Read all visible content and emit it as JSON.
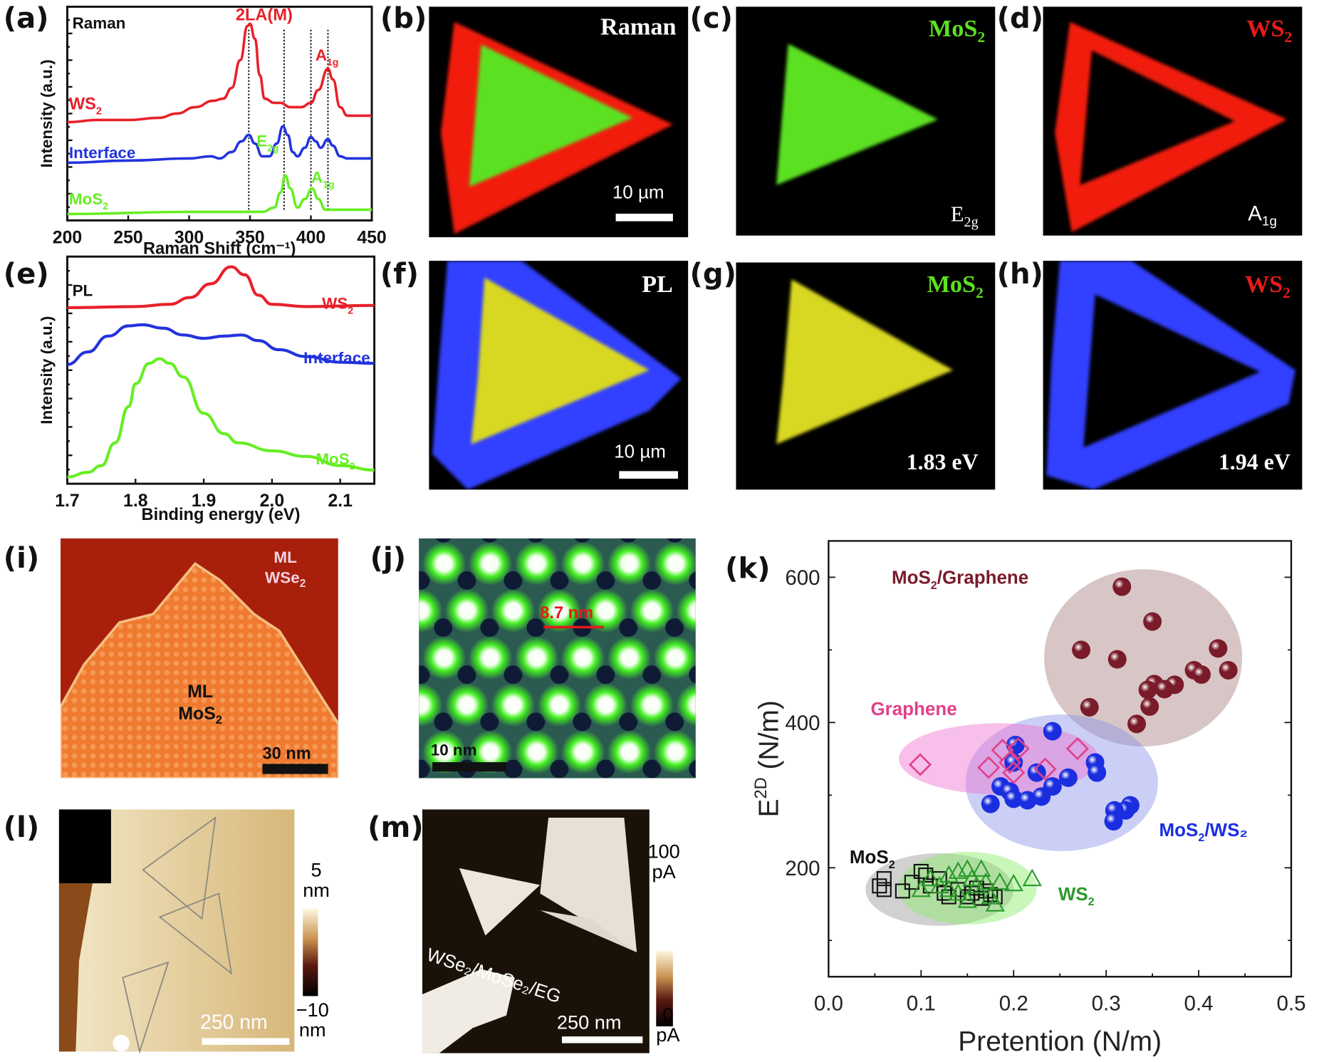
{
  "panel_labels": {
    "a": "(a)",
    "b": "(b)",
    "c": "(c)",
    "d": "(d)",
    "e": "(e)",
    "f": "(f)",
    "g": "(g)",
    "h": "(h)",
    "i": "(i)",
    "j": "(j)",
    "k": "(k)",
    "l": "(l)",
    "m": "(m)"
  },
  "colors": {
    "ws2": "#e8202a",
    "interface": "#2233dd",
    "mos2": "#66ee22",
    "pl_yellow": "#e6e61a",
    "pl_blue": "#3344ff",
    "mos2_graphene": "#7a1b2a",
    "graphene": "#e0408a",
    "mos2_ws2": "#1a2ee0",
    "ws2_green": "#2a9a2a"
  },
  "images": {
    "b": {
      "title": "Raman",
      "scale": "10 µm"
    },
    "c": {
      "title_main": "MoS",
      "title_sub": "2",
      "mode_main": "E",
      "mode_sub": "2g"
    },
    "d": {
      "title_main": "WS",
      "title_sub": "2",
      "mode_main": "A",
      "mode_sub": "1g"
    },
    "f": {
      "title": "PL",
      "scale": "10 µm"
    },
    "g": {
      "title_main": "MoS",
      "title_sub": "2",
      "energy": "1.83 eV"
    },
    "h": {
      "title_main": "WS",
      "title_sub": "2",
      "energy": "1.94 eV"
    },
    "i": {
      "top_main": "ML",
      "top_line2_main": "WSe",
      "top_line2_sub": "2",
      "mid_main": "ML",
      "mid_line2_main": "MoS",
      "mid_line2_sub": "2",
      "scale": "30 nm"
    },
    "j": {
      "distance": "8.7 nm",
      "scale": "10 nm"
    },
    "l": {
      "cbar_top": "5",
      "cbar_top_unit": "nm",
      "cbar_bottom": "−10",
      "cbar_bottom_unit": "nm",
      "scale": "250 nm"
    },
    "m": {
      "cbar_top": "100",
      "cbar_top_unit": "pA",
      "cbar_bottom": "0",
      "cbar_bottom_unit": "pA",
      "annotation": "WSe₂/MoSe₂/EG",
      "scale": "250 nm"
    }
  },
  "chart_data": [
    {
      "id": "a",
      "type": "line",
      "xlabel": "Raman Shift (cm⁻¹)",
      "ylabel": "Intensity (a.u.)",
      "xlim": [
        200,
        450
      ],
      "ylim": [
        0,
        1
      ],
      "xticks": [
        200,
        250,
        300,
        350,
        400,
        450
      ],
      "grid": false,
      "annotations": [
        {
          "main": "Raman",
          "sub": "",
          "color": "#111111"
        },
        {
          "main": "2LA(M)",
          "sub": "",
          "color": "#e8202a"
        },
        {
          "main": "A",
          "sub": "1g",
          "color": "#e8202a"
        },
        {
          "main": "WS",
          "sub": "2",
          "color": "#e8202a"
        },
        {
          "main": "Interface",
          "sub": "",
          "color": "#2233dd"
        },
        {
          "main": "E",
          "sub": "2g",
          "color": "#66ee22"
        },
        {
          "main": "A",
          "sub": "1g",
          "color": "#66ee22"
        },
        {
          "main": "MoS",
          "sub": "2",
          "color": "#66ee22"
        }
      ],
      "peak_markers": [
        349,
        378,
        400,
        414
      ],
      "series": [
        {
          "name": "WS2",
          "color": "#e8202a",
          "points": [
            [
              200,
              0.46
            ],
            [
              225,
              0.47
            ],
            [
              250,
              0.47
            ],
            [
              275,
              0.48
            ],
            [
              290,
              0.5
            ],
            [
              305,
              0.53
            ],
            [
              320,
              0.56
            ],
            [
              328,
              0.57
            ],
            [
              335,
              0.62
            ],
            [
              342,
              0.75
            ],
            [
              348,
              0.91
            ],
            [
              350,
              0.92
            ],
            [
              354,
              0.85
            ],
            [
              358,
              0.68
            ],
            [
              362,
              0.57
            ],
            [
              370,
              0.55
            ],
            [
              375,
              0.55
            ],
            [
              383,
              0.53
            ],
            [
              392,
              0.53
            ],
            [
              400,
              0.55
            ],
            [
              406,
              0.61
            ],
            [
              414,
              0.71
            ],
            [
              418,
              0.66
            ],
            [
              424,
              0.53
            ],
            [
              430,
              0.49
            ],
            [
              450,
              0.49
            ]
          ]
        },
        {
          "name": "Interface",
          "color": "#2233dd",
          "points": [
            [
              200,
              0.27
            ],
            [
              250,
              0.28
            ],
            [
              300,
              0.29
            ],
            [
              318,
              0.3
            ],
            [
              325,
              0.29
            ],
            [
              335,
              0.32
            ],
            [
              343,
              0.37
            ],
            [
              349,
              0.4
            ],
            [
              354,
              0.36
            ],
            [
              360,
              0.3
            ],
            [
              366,
              0.3
            ],
            [
              372,
              0.36
            ],
            [
              377,
              0.44
            ],
            [
              381,
              0.4
            ],
            [
              385,
              0.32
            ],
            [
              389,
              0.3
            ],
            [
              395,
              0.34
            ],
            [
              400,
              0.39
            ],
            [
              404,
              0.37
            ],
            [
              408,
              0.34
            ],
            [
              414,
              0.38
            ],
            [
              418,
              0.35
            ],
            [
              424,
              0.3
            ],
            [
              430,
              0.29
            ],
            [
              450,
              0.29
            ]
          ]
        },
        {
          "name": "MoS2",
          "color": "#66ee22",
          "points": [
            [
              200,
              0.03
            ],
            [
              300,
              0.04
            ],
            [
              360,
              0.04
            ],
            [
              370,
              0.06
            ],
            [
              375,
              0.13
            ],
            [
              379,
              0.21
            ],
            [
              383,
              0.15
            ],
            [
              389,
              0.06
            ],
            [
              395,
              0.1
            ],
            [
              401,
              0.15
            ],
            [
              406,
              0.1
            ],
            [
              412,
              0.05
            ],
            [
              420,
              0.05
            ],
            [
              450,
              0.05
            ]
          ]
        }
      ]
    },
    {
      "id": "e",
      "type": "line",
      "xlabel": "Binding energy (eV)",
      "ylabel": "Intensity (a.u.)",
      "xlim": [
        1.7,
        2.15
      ],
      "ylim": [
        0,
        1
      ],
      "xticks": [
        1.7,
        1.8,
        1.9,
        2.0,
        2.1
      ],
      "grid": false,
      "annotations": [
        {
          "main": "PL",
          "sub": "",
          "color": "#111111"
        },
        {
          "main": "WS",
          "sub": "2",
          "color": "#e8202a"
        },
        {
          "main": "Interface",
          "sub": "",
          "color": "#2233dd"
        },
        {
          "main": "MoS",
          "sub": "2",
          "color": "#66ee22"
        }
      ],
      "series": [
        {
          "name": "WS2",
          "color": "#e8202a",
          "points": [
            [
              1.7,
              0.775
            ],
            [
              1.8,
              0.78
            ],
            [
              1.85,
              0.79
            ],
            [
              1.88,
              0.82
            ],
            [
              1.91,
              0.88
            ],
            [
              1.94,
              0.955
            ],
            [
              1.96,
              0.92
            ],
            [
              1.98,
              0.83
            ],
            [
              2.0,
              0.79
            ],
            [
              2.05,
              0.78
            ],
            [
              2.15,
              0.785
            ]
          ]
        },
        {
          "name": "Interface",
          "color": "#2233dd",
          "points": [
            [
              1.7,
              0.525
            ],
            [
              1.73,
              0.58
            ],
            [
              1.76,
              0.65
            ],
            [
              1.79,
              0.695
            ],
            [
              1.81,
              0.7
            ],
            [
              1.84,
              0.685
            ],
            [
              1.87,
              0.655
            ],
            [
              1.9,
              0.64
            ],
            [
              1.93,
              0.65
            ],
            [
              1.955,
              0.655
            ],
            [
              1.98,
              0.63
            ],
            [
              2.01,
              0.59
            ],
            [
              2.05,
              0.56
            ],
            [
              2.1,
              0.535
            ],
            [
              2.15,
              0.53
            ]
          ]
        },
        {
          "name": "MoS2",
          "color": "#66ee22",
          "points": [
            [
              1.7,
              0.03
            ],
            [
              1.73,
              0.05
            ],
            [
              1.75,
              0.08
            ],
            [
              1.77,
              0.18
            ],
            [
              1.79,
              0.34
            ],
            [
              1.8,
              0.44
            ],
            [
              1.82,
              0.53
            ],
            [
              1.835,
              0.55
            ],
            [
              1.85,
              0.53
            ],
            [
              1.87,
              0.47
            ],
            [
              1.9,
              0.31
            ],
            [
              1.93,
              0.22
            ],
            [
              1.95,
              0.18
            ],
            [
              2.0,
              0.145
            ],
            [
              2.05,
              0.12
            ],
            [
              2.1,
              0.08
            ],
            [
              2.15,
              0.06
            ]
          ]
        }
      ]
    },
    {
      "id": "k",
      "type": "scatter",
      "xlabel": "Pretention (N/m)",
      "ylabel_main": "E",
      "ylabel_sup": "2D",
      "ylabel_rest": " (N/m)",
      "xlim": [
        0,
        0.5
      ],
      "ylim": [
        50,
        650
      ],
      "xticks": [
        0.0,
        0.1,
        0.2,
        0.3,
        0.4,
        0.5
      ],
      "yticks": [
        200,
        400,
        600
      ],
      "yminor": [
        100,
        300,
        500
      ],
      "grid": false,
      "series": [
        {
          "name": "MoS2/Graphene",
          "name_main": "MoS",
          "name_sub": "2",
          "name_rest": "/Graphene",
          "marker": "sphere",
          "color": "#7a1b2a",
          "ellipse": {
            "cx": 0.34,
            "cy": 489,
            "rx": 0.107,
            "ry": 122,
            "color": "#a88080"
          },
          "points": [
            [
              0.317,
              587
            ],
            [
              0.35,
              539
            ],
            [
              0.273,
              500
            ],
            [
              0.312,
              487
            ],
            [
              0.421,
              502
            ],
            [
              0.432,
              472
            ],
            [
              0.395,
              472
            ],
            [
              0.403,
              466
            ],
            [
              0.374,
              452
            ],
            [
              0.352,
              453
            ],
            [
              0.363,
              446
            ],
            [
              0.345,
              445
            ],
            [
              0.347,
              422
            ],
            [
              0.282,
              421
            ],
            [
              0.333,
              398
            ]
          ]
        },
        {
          "name": "MoS2/WS2",
          "name_main": "MoS",
          "name_sub": "2",
          "name_rest": "/WS₂",
          "marker": "sphere",
          "color": "#1a2ee0",
          "ellipse": {
            "cx": 0.252,
            "cy": 317,
            "rx": 0.104,
            "ry": 94,
            "color": "#8c94e8"
          },
          "points": [
            [
              0.242,
              388
            ],
            [
              0.202,
              369
            ],
            [
              0.2,
              345
            ],
            [
              0.288,
              345
            ],
            [
              0.29,
              331
            ],
            [
              0.225,
              331
            ],
            [
              0.259,
              324
            ],
            [
              0.186,
              312
            ],
            [
              0.242,
              312
            ],
            [
              0.196,
              305
            ],
            [
              0.175,
              288
            ],
            [
              0.2,
              295
            ],
            [
              0.215,
              293
            ],
            [
              0.23,
              298
            ],
            [
              0.326,
              286
            ],
            [
              0.321,
              279
            ],
            [
              0.309,
              279
            ],
            [
              0.308,
              264
            ]
          ]
        },
        {
          "name": "Graphene",
          "name_main": "Graphene",
          "name_sub": "",
          "name_rest": "",
          "marker": "diamond",
          "color": "#e0408a",
          "ellipse": {
            "cx": 0.184,
            "cy": 350,
            "rx": 0.108,
            "ry": 49,
            "color": "#f070d0"
          },
          "points": [
            [
              0.099,
              342
            ],
            [
              0.173,
              338
            ],
            [
              0.188,
              362
            ],
            [
              0.205,
              364
            ],
            [
              0.196,
              345
            ],
            [
              0.2,
              331
            ],
            [
              0.234,
              336
            ],
            [
              0.269,
              364
            ]
          ]
        },
        {
          "name": "MoS2",
          "name_main": "MoS",
          "name_sub": "2",
          "name_rest": "",
          "marker": "square",
          "color": "#111111",
          "ellipse": {
            "cx": 0.12,
            "cy": 170,
            "rx": 0.08,
            "ry": 50,
            "color": "#9a9a9a"
          },
          "points": [
            [
              0.06,
              185
            ],
            [
              0.06,
              170
            ],
            [
              0.055,
              175
            ],
            [
              0.08,
              168
            ],
            [
              0.09,
              180
            ],
            [
              0.1,
              195
            ],
            [
              0.105,
              190
            ],
            [
              0.11,
              175
            ],
            [
              0.12,
              185
            ],
            [
              0.125,
              165
            ],
            [
              0.13,
              160
            ],
            [
              0.14,
              170
            ],
            [
              0.15,
              160
            ],
            [
              0.155,
              165
            ],
            [
              0.16,
              172
            ],
            [
              0.165,
              158
            ],
            [
              0.17,
              168
            ],
            [
              0.175,
              163
            ],
            [
              0.18,
              160
            ]
          ]
        },
        {
          "name": "WS2",
          "name_main": "WS",
          "name_sub": "2",
          "name_rest": "",
          "marker": "triangle",
          "color": "#2a9a2a",
          "ellipse": {
            "cx": 0.15,
            "cy": 172,
            "rx": 0.075,
            "ry": 50,
            "color": "#88ee66"
          },
          "points": [
            [
              0.1,
              170
            ],
            [
              0.11,
              185
            ],
            [
              0.12,
              175
            ],
            [
              0.13,
              190
            ],
            [
              0.14,
              195
            ],
            [
              0.15,
              198
            ],
            [
              0.155,
              185
            ],
            [
              0.16,
              175
            ],
            [
              0.165,
              198
            ],
            [
              0.17,
              180
            ],
            [
              0.175,
              160
            ],
            [
              0.18,
              150
            ],
            [
              0.185,
              180
            ],
            [
              0.2,
              178
            ],
            [
              0.22,
              185
            ],
            [
              0.14,
              165
            ],
            [
              0.15,
              155
            ],
            [
              0.13,
              170
            ]
          ]
        }
      ]
    }
  ]
}
